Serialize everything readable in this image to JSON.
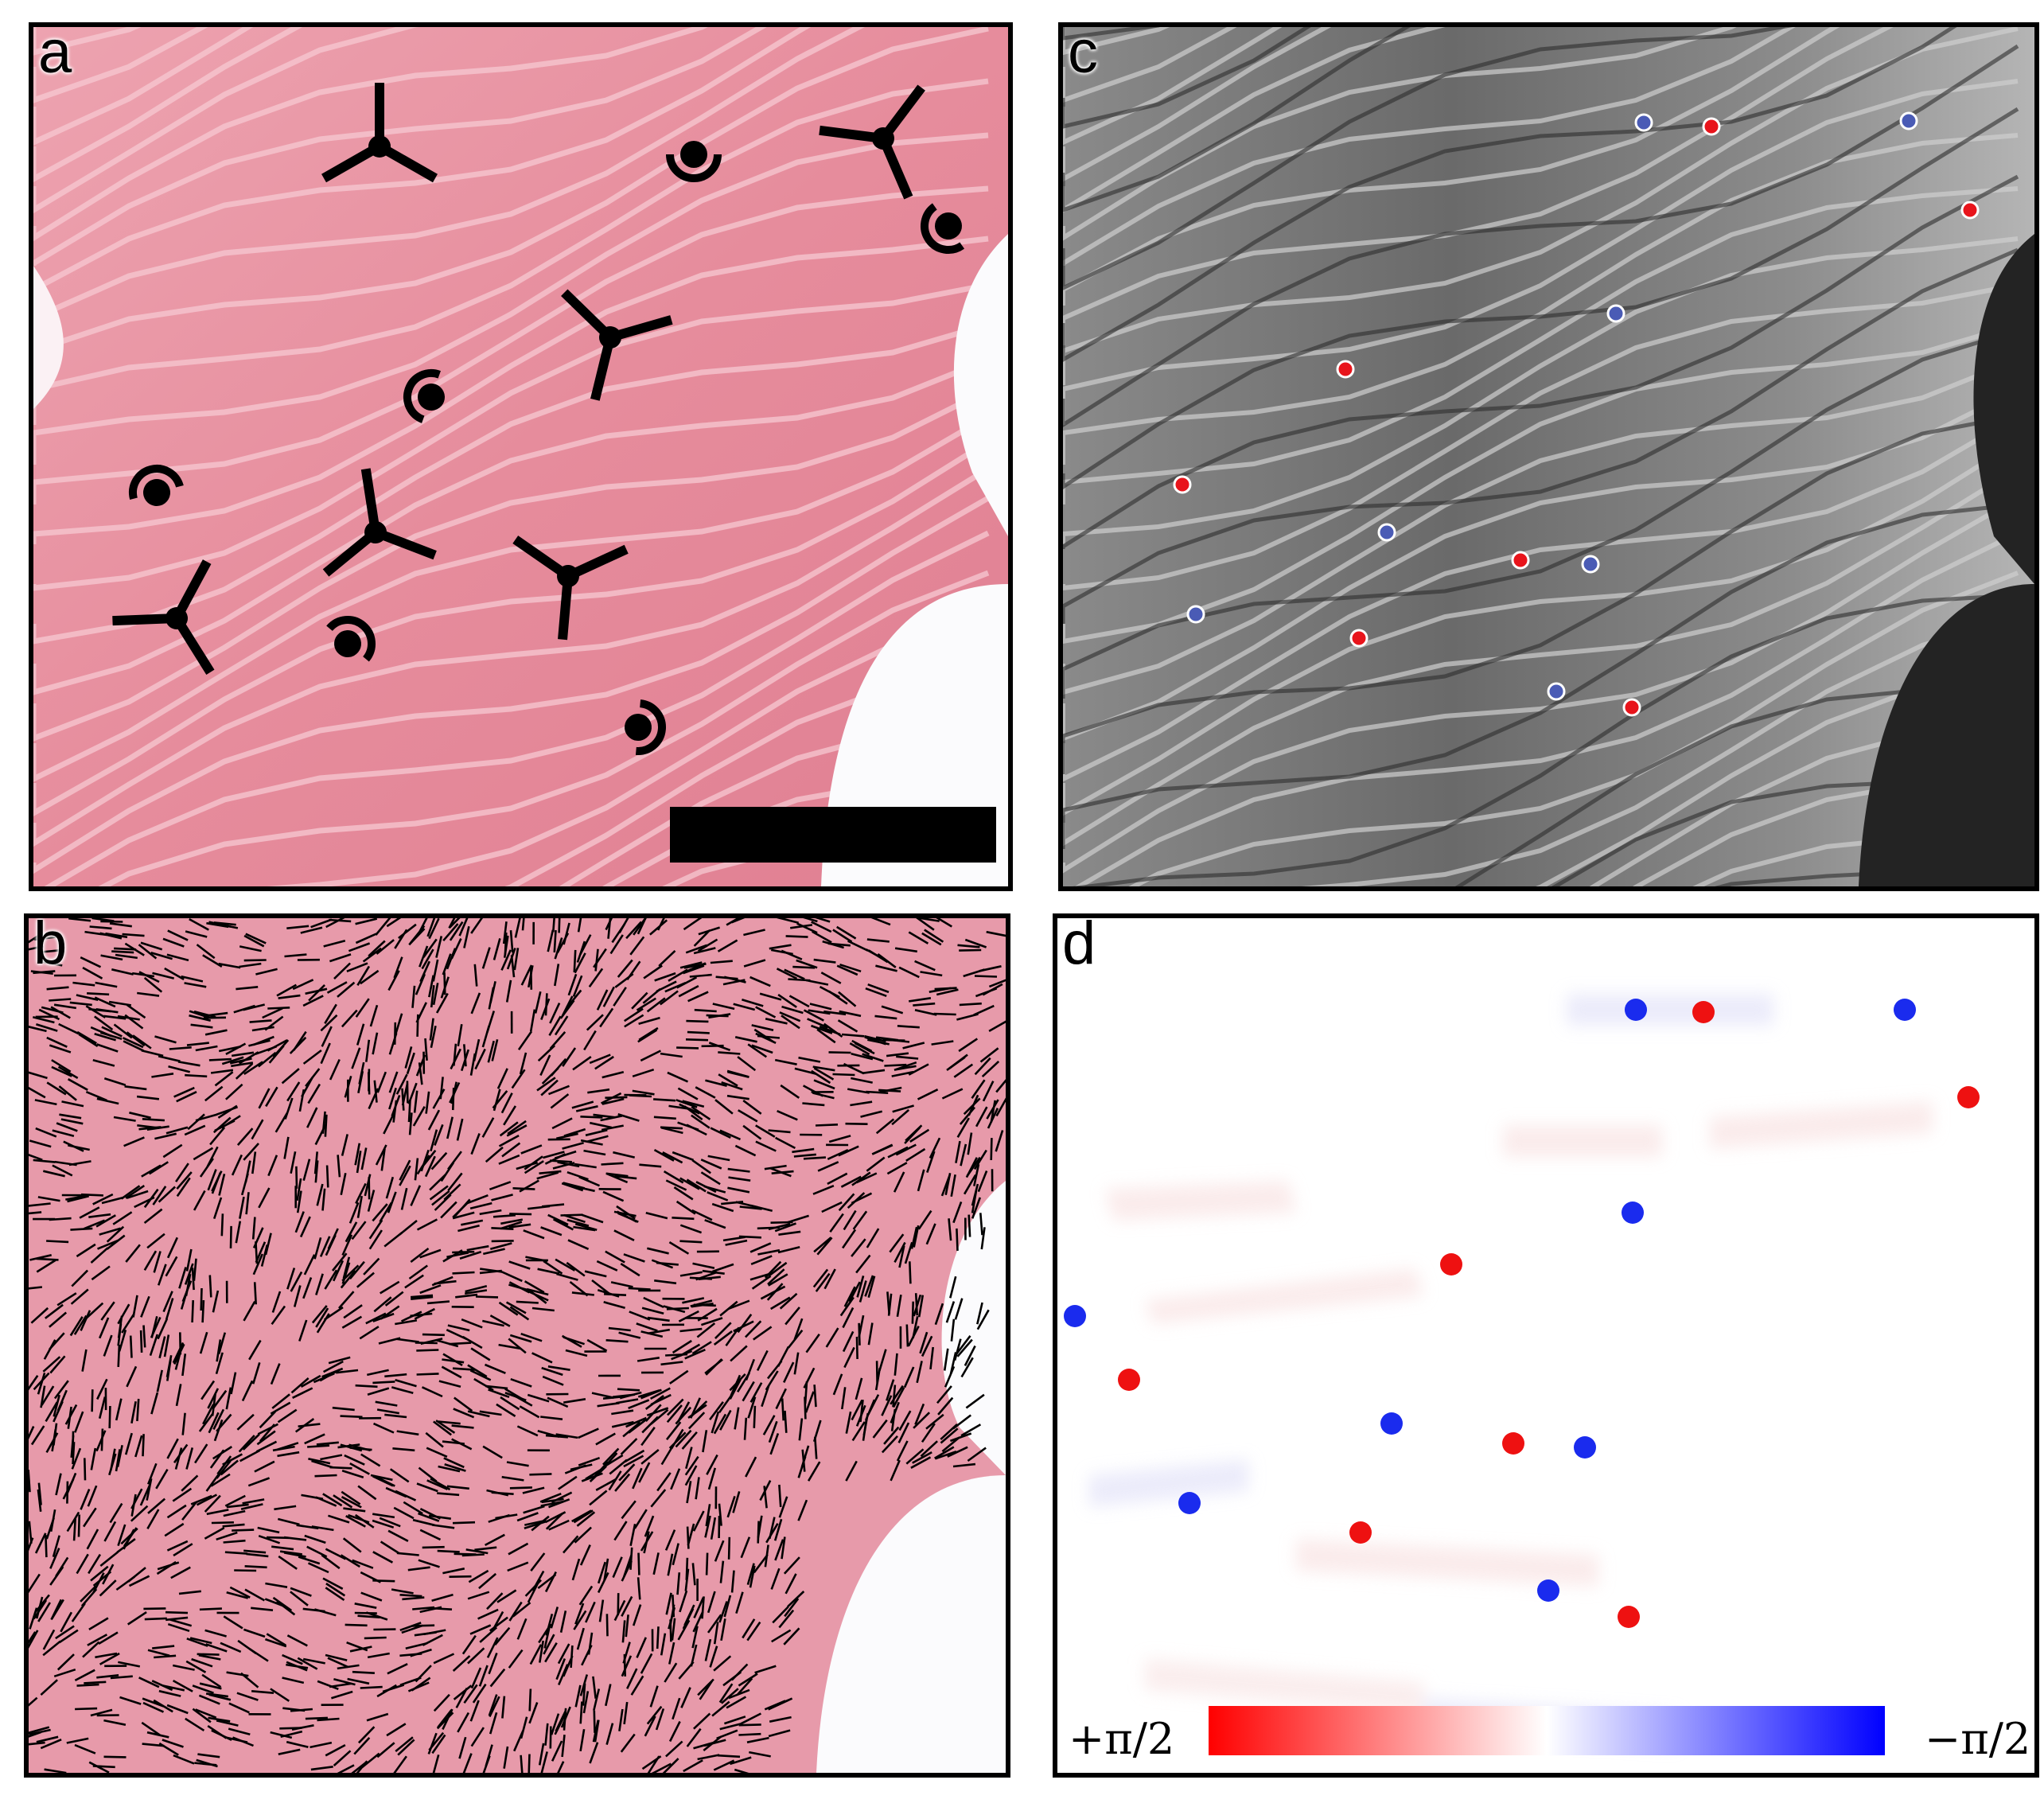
{
  "panels": {
    "a": {
      "label": "a"
    },
    "b": {
      "label": "b"
    },
    "c": {
      "label": "c"
    },
    "d": {
      "label": "d"
    }
  },
  "colorbar": {
    "left_label": "+π/2",
    "right_label": "−π/2",
    "colors": [
      "#ff0000",
      "#ffffff",
      "#0000ff"
    ]
  },
  "defect_colors": {
    "positive": "#e8141b",
    "negative": "#4a5bb5"
  },
  "tissue_colors": {
    "pink": "#e7909e",
    "pale": "#fbe4e9"
  }
}
